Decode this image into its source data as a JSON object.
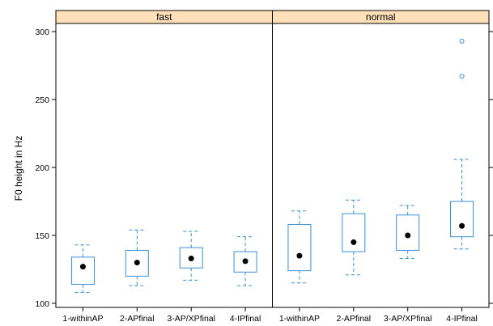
{
  "chart_data": {
    "type": "box",
    "ylabel": "F0 height in Hz",
    "xlabel": "",
    "ylim": [
      97,
      306
    ],
    "yticks": [
      100,
      150,
      200,
      250,
      300
    ],
    "categories": [
      "1-withinAP",
      "2-APfinal",
      "3-AP/XPfinal",
      "4-IPfinal"
    ],
    "colors": {
      "box": "#3a8fd8",
      "strip": "#ffe0b8",
      "median": "#000000",
      "frame": "#000000"
    },
    "panels": [
      {
        "label": "fast",
        "boxes": [
          {
            "category": "1-withinAP",
            "whisker_low": 108,
            "q1": 114,
            "median": 127,
            "q3": 134,
            "whisker_high": 143,
            "outliers": []
          },
          {
            "category": "2-APfinal",
            "whisker_low": 113,
            "q1": 120,
            "median": 130,
            "q3": 139,
            "whisker_high": 154,
            "outliers": []
          },
          {
            "category": "3-AP/XPfinal",
            "whisker_low": 117,
            "q1": 126,
            "median": 133,
            "q3": 141,
            "whisker_high": 153,
            "outliers": []
          },
          {
            "category": "4-IPfinal",
            "whisker_low": 113,
            "q1": 123,
            "median": 131,
            "q3": 138,
            "whisker_high": 149,
            "outliers": []
          }
        ]
      },
      {
        "label": "normal",
        "boxes": [
          {
            "category": "1-withinAP",
            "whisker_low": 115,
            "q1": 124,
            "median": 135,
            "q3": 158,
            "whisker_high": 168,
            "outliers": []
          },
          {
            "category": "2-APfinal",
            "whisker_low": 121,
            "q1": 138,
            "median": 145,
            "q3": 166,
            "whisker_high": 176,
            "outliers": []
          },
          {
            "category": "3-AP/XPfinal",
            "whisker_low": 133,
            "q1": 139,
            "median": 150,
            "q3": 165,
            "whisker_high": 172,
            "outliers": []
          },
          {
            "category": "4-IPfinal",
            "whisker_low": 140,
            "q1": 149,
            "median": 157,
            "q3": 175,
            "whisker_high": 206,
            "outliers": [
              267,
              293
            ]
          }
        ]
      }
    ]
  }
}
